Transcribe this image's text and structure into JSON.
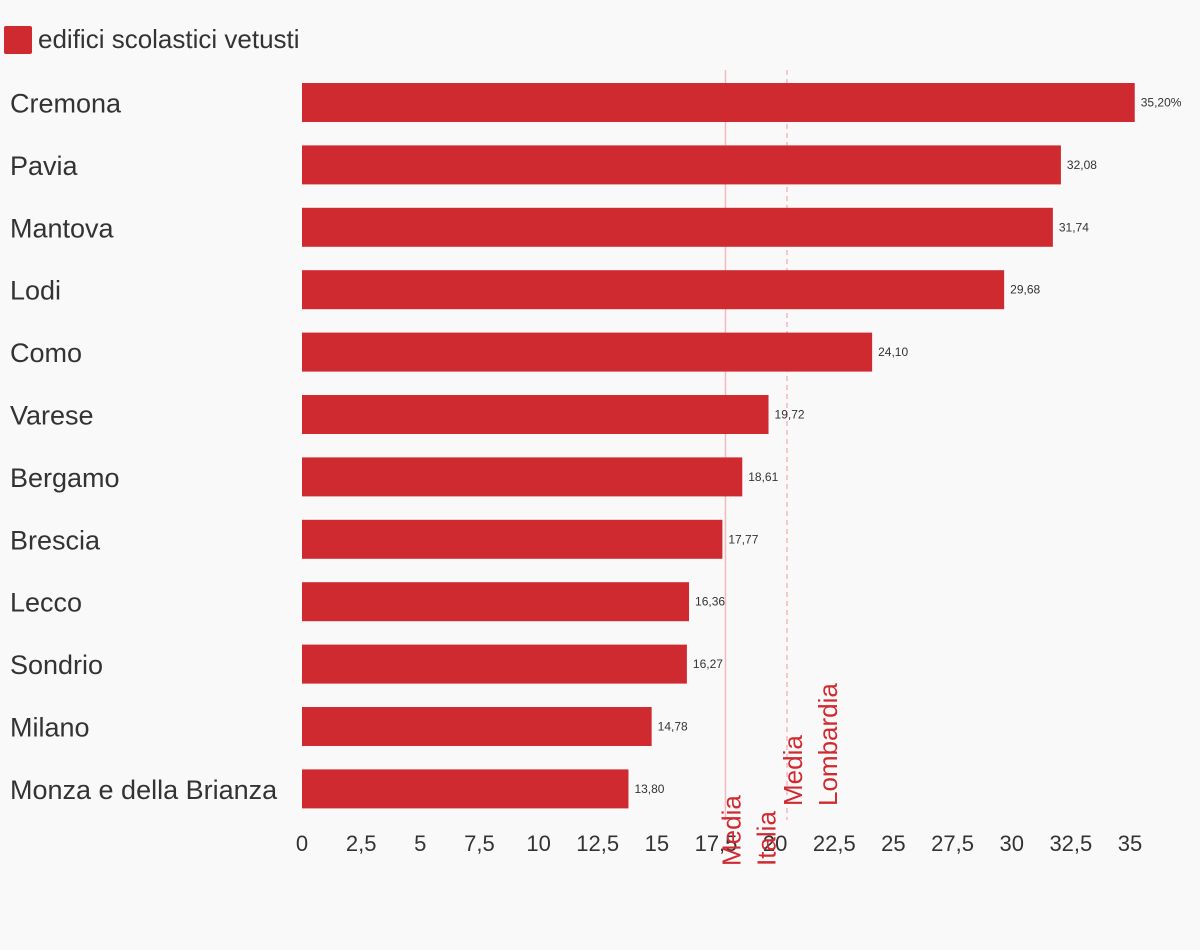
{
  "chart_data": {
    "type": "bar",
    "orientation": "horizontal",
    "categories": [
      "Cremona",
      "Pavia",
      "Mantova",
      "Lodi",
      "Como",
      "Varese",
      "Bergamo",
      "Brescia",
      "Lecco",
      "Sondrio",
      "Milano",
      "Monza e della Brianza"
    ],
    "series": [
      {
        "name": "edifici scolastici vetusti",
        "color": "#cf2a30",
        "values": [
          35.2,
          32.08,
          31.74,
          29.68,
          24.1,
          19.72,
          18.61,
          17.77,
          16.36,
          16.27,
          14.78,
          13.8
        ],
        "labels": [
          "35,20%",
          "32,08",
          "31,74",
          "29,68",
          "24,10",
          "19,72",
          "18,61",
          "17,77",
          "16,36",
          "16,27",
          "14,78",
          "13,80"
        ]
      }
    ],
    "xlim": [
      0,
      35
    ],
    "x_ticks": [
      0,
      2.5,
      5,
      7.5,
      10,
      12.5,
      15,
      17.5,
      20,
      22.5,
      25,
      27.5,
      30,
      32.5,
      35
    ],
    "x_tick_labels": [
      "0",
      "2,5",
      "5",
      "7,5",
      "10",
      "12,5",
      "15",
      "17,5",
      "20",
      "22,5",
      "25",
      "27,5",
      "30",
      "32,5",
      "35"
    ],
    "reference_lines": [
      {
        "label_lines": [
          "Media",
          "Italia"
        ],
        "value": 17.9,
        "style": "solid",
        "color": "#f5b8bc"
      },
      {
        "label_lines": [
          "Media",
          "Lombardia"
        ],
        "value": 20.5,
        "style": "dashed",
        "color": "#f5b8bc"
      }
    ],
    "reference_label_color": "#cf2a30",
    "legend_position": "top-left",
    "grid": false
  }
}
